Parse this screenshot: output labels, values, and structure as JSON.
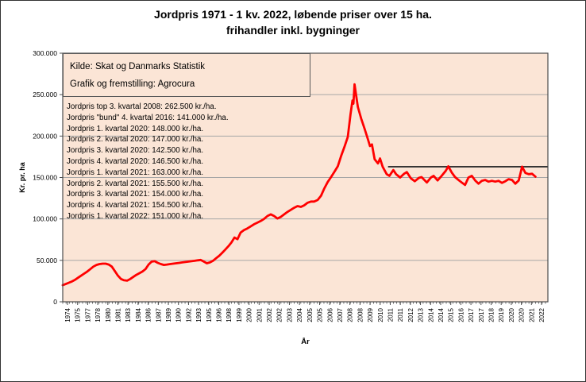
{
  "title": {
    "line1": "Jordpris 1971 - 1 kv. 2022, løbende priser over 15 ha.",
    "line2": "frihandler inkl. bygninger"
  },
  "source_box": {
    "line1": "Kilde: Skat og Danmarks Statistik",
    "line2": "Grafik og fremstilling: Agrocura"
  },
  "annotations": [
    "Jordpris top 3. kvartal 2008: 262.500 kr./ha.",
    "Jordpris \"bund\" 4. kvartal 2016: 141.000 kr./ha.",
    "Jordpris 1. kvartal 2020: 148.000 kr./ha.",
    "Jordpris 2. kvartal 2020: 147.000 kr./ha.",
    "Jordpris 3. kvartal 2020: 142.500 kr./ha.",
    "Jordpris 4. kvartal 2020: 146.500 kr./ha.",
    "Jordpris 1. kvartal 2021: 163.000 kr./ha.",
    "Jordpris 2. kvartal 2021: 155.500 kr./ha.",
    "Jordpris 3. kvartal 2021: 154.000 kr./ha.",
    "Jordpris 4. kvartal 2021: 154.500 kr./ha.",
    "Jordpris 1. kvartal 2022: 151.000 kr./ha."
  ],
  "colors": {
    "page_bg": "#ffffff",
    "plot_bg": "#fbe5d6",
    "line": "#ff0000",
    "grid": "#a6a6a6",
    "border": "#4d4d4d",
    "reference_line": "#333333",
    "text": "#000000"
  },
  "chart_data": {
    "type": "line",
    "title": "Jordpris 1971 - 1 kv. 2022, løbende priser over 15 ha. frihandler inkl. bygninger",
    "xlabel": "År",
    "ylabel": "Kr. pr. ha",
    "ylim": [
      0,
      300000
    ],
    "grid": "horizontal",
    "legend": "none",
    "y_ticks": [
      {
        "label": "300.000",
        "value": 300000
      },
      {
        "label": "250.000",
        "value": 250000
      },
      {
        "label": "200.000",
        "value": 200000
      },
      {
        "label": "150.000",
        "value": 150000
      },
      {
        "label": "100.000",
        "value": 100000
      },
      {
        "label": "50.000",
        "value": 50000
      },
      {
        "label": "0",
        "value": 0
      }
    ],
    "x_tick_labels": [
      "1974",
      "1975",
      "1977",
      "1978",
      "1980",
      "1981",
      "1983",
      "1984",
      "1986",
      "1987",
      "1989",
      "1990",
      "1992",
      "1993",
      "1995",
      "1996",
      "1998",
      "1999",
      "2000",
      "2001",
      "2002",
      "2002",
      "2003",
      "2004",
      "2005",
      "2005",
      "2006",
      "2007",
      "2008",
      "2008",
      "2009",
      "2010",
      "2011",
      "2011",
      "2012",
      "2013",
      "2014",
      "2014",
      "2015",
      "2016",
      "2017",
      "2017",
      "2018",
      "2019",
      "2020",
      "2020",
      "2021",
      "2022"
    ],
    "reference_line": {
      "value": 163000,
      "from_year": 2011,
      "to": "plot-right-edge"
    },
    "key_points": {
      "top_3_kvartal_2008": 262500,
      "bund_4_kvartal_2016": 141000,
      "kvartal_1_2020": 148000,
      "kvartal_2_2020": 147000,
      "kvartal_3_2020": 142500,
      "kvartal_4_2020": 146500,
      "kvartal_1_2021": 163000,
      "kvartal_2_2021": 155500,
      "kvartal_3_2021": 154000,
      "kvartal_4_2021": 154500,
      "kvartal_1_2022": 151000
    },
    "series": [
      {
        "name": "Jordpris kr. pr. ha",
        "color": "#ff0000",
        "points": [
          [
            1971,
            20000
          ],
          [
            1971.5,
            21500
          ],
          [
            1972,
            23000
          ],
          [
            1972.5,
            24500
          ],
          [
            1973,
            26500
          ],
          [
            1973.5,
            29000
          ],
          [
            1974,
            31500
          ],
          [
            1974.5,
            34000
          ],
          [
            1975,
            36500
          ],
          [
            1975.5,
            39500
          ],
          [
            1976,
            42500
          ],
          [
            1976.5,
            44500
          ],
          [
            1977,
            45500
          ],
          [
            1977.5,
            46000
          ],
          [
            1978,
            46000
          ],
          [
            1978.5,
            45000
          ],
          [
            1979,
            42500
          ],
          [
            1979.5,
            37000
          ],
          [
            1980,
            31500
          ],
          [
            1980.5,
            27500
          ],
          [
            1981,
            26000
          ],
          [
            1981.5,
            25500
          ],
          [
            1982,
            27500
          ],
          [
            1982.5,
            30000
          ],
          [
            1983,
            32500
          ],
          [
            1983.5,
            34500
          ],
          [
            1984,
            36500
          ],
          [
            1984.5,
            39500
          ],
          [
            1985,
            45000
          ],
          [
            1985.5,
            48500
          ],
          [
            1986,
            49000
          ],
          [
            1986.5,
            47000
          ],
          [
            1987,
            45500
          ],
          [
            1987.5,
            44500
          ],
          [
            1988,
            45000
          ],
          [
            1988.5,
            45500
          ],
          [
            1989,
            46000
          ],
          [
            1989.5,
            46500
          ],
          [
            1990,
            47000
          ],
          [
            1990.5,
            47500
          ],
          [
            1991,
            48000
          ],
          [
            1991.5,
            48500
          ],
          [
            1992,
            49000
          ],
          [
            1992.5,
            49500
          ],
          [
            1993,
            50000
          ],
          [
            1993.5,
            50500
          ],
          [
            1994,
            48500
          ],
          [
            1994.5,
            46500
          ],
          [
            1995,
            47500
          ],
          [
            1995.5,
            49500
          ],
          [
            1996,
            52500
          ],
          [
            1996.5,
            55500
          ],
          [
            1997,
            59000
          ],
          [
            1997.5,
            63000
          ],
          [
            1998,
            67000
          ],
          [
            1998.5,
            71500
          ],
          [
            1999,
            77500
          ],
          [
            1999.5,
            75500
          ],
          [
            2000,
            83500
          ],
          [
            2000.25,
            86500
          ],
          [
            2000.5,
            88500
          ],
          [
            2000.75,
            91000
          ],
          [
            2001,
            93500
          ],
          [
            2001.25,
            95500
          ],
          [
            2001.5,
            97500
          ],
          [
            2001.75,
            100000
          ],
          [
            2002,
            103500
          ],
          [
            2002.25,
            105500
          ],
          [
            2002.5,
            103500
          ],
          [
            2002.75,
            100500
          ],
          [
            2003,
            102500
          ],
          [
            2003.25,
            105500
          ],
          [
            2003.5,
            108500
          ],
          [
            2003.75,
            111000
          ],
          [
            2004,
            113500
          ],
          [
            2004.25,
            115500
          ],
          [
            2004.5,
            114500
          ],
          [
            2004.75,
            116500
          ],
          [
            2005,
            119500
          ],
          [
            2005.25,
            121000
          ],
          [
            2005.5,
            121000
          ],
          [
            2005.75,
            123000
          ],
          [
            2006,
            128000
          ],
          [
            2006.25,
            137000
          ],
          [
            2006.5,
            144500
          ],
          [
            2006.75,
            150500
          ],
          [
            2007,
            157000
          ],
          [
            2007.25,
            163500
          ],
          [
            2007.5,
            176000
          ],
          [
            2007.75,
            187000
          ],
          [
            2008,
            199000
          ],
          [
            2008.2,
            226000
          ],
          [
            2008.35,
            243000
          ],
          [
            2008.42,
            239000
          ],
          [
            2008.5,
            262500
          ],
          [
            2008.65,
            246000
          ],
          [
            2008.75,
            235000
          ],
          [
            2009,
            221000
          ],
          [
            2009.25,
            209000
          ],
          [
            2009.5,
            196000
          ],
          [
            2009.65,
            188000
          ],
          [
            2009.8,
            190000
          ],
          [
            2010,
            172000
          ],
          [
            2010.25,
            167000
          ],
          [
            2010.4,
            173000
          ],
          [
            2010.6,
            163000
          ],
          [
            2010.9,
            154000
          ],
          [
            2011.1,
            152000
          ],
          [
            2011.4,
            159000
          ],
          [
            2011.6,
            154000
          ],
          [
            2011.9,
            150000
          ],
          [
            2012.2,
            154500
          ],
          [
            2012.4,
            156500
          ],
          [
            2012.7,
            149000
          ],
          [
            2013,
            145500
          ],
          [
            2013.3,
            149500
          ],
          [
            2013.5,
            150500
          ],
          [
            2013.9,
            144000
          ],
          [
            2014.2,
            150000
          ],
          [
            2014.4,
            152000
          ],
          [
            2014.7,
            146500
          ],
          [
            2015,
            152000
          ],
          [
            2015.3,
            158000
          ],
          [
            2015.5,
            163500
          ],
          [
            2015.75,
            156000
          ],
          [
            2016,
            150500
          ],
          [
            2016.3,
            146500
          ],
          [
            2016.5,
            144000
          ],
          [
            2016.75,
            141000
          ],
          [
            2017,
            150000
          ],
          [
            2017.25,
            152000
          ],
          [
            2017.5,
            146500
          ],
          [
            2017.75,
            142500
          ],
          [
            2018,
            146000
          ],
          [
            2018.25,
            147000
          ],
          [
            2018.5,
            145000
          ],
          [
            2018.75,
            146000
          ],
          [
            2019,
            145000
          ],
          [
            2019.25,
            146000
          ],
          [
            2019.5,
            143500
          ],
          [
            2019.75,
            145500
          ],
          [
            2020,
            148000
          ],
          [
            2020.25,
            147000
          ],
          [
            2020.5,
            142500
          ],
          [
            2020.75,
            146500
          ],
          [
            2021,
            163000
          ],
          [
            2021.25,
            155500
          ],
          [
            2021.5,
            154000
          ],
          [
            2021.75,
            154500
          ],
          [
            2022,
            151000
          ]
        ]
      }
    ]
  }
}
